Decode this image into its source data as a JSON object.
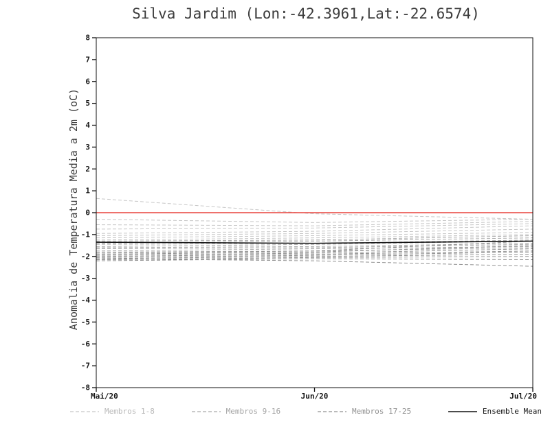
{
  "chart_data": {
    "type": "line",
    "title": "Silva Jardim (Lon:-42.3961,Lat:-22.6574)",
    "ylabel": "Anomalia de Temperatura Media a 2m (oC)",
    "xlabel": "",
    "ylim": [
      -8,
      8
    ],
    "y_ticks": [
      8,
      7,
      6,
      5,
      4,
      3,
      2,
      1,
      0,
      -1,
      -2,
      -3,
      -4,
      -5,
      -6,
      -7,
      -8
    ],
    "x": [
      "Mai/20",
      "Jun/20",
      "Jul/20"
    ],
    "grid": false,
    "legend_position": "bottom",
    "zero_line": {
      "value": 0,
      "color": "#e8423c"
    },
    "ensemble_mean": {
      "name": "Ensemble Mean",
      "color": "#111111",
      "dashed": false,
      "values": [
        -1.35,
        -1.4,
        -1.3
      ]
    },
    "series": [
      {
        "name": "Membro 1",
        "group": "1-8",
        "color": "#c6c6c6",
        "dashed": true,
        "values": [
          0.65,
          -0.05,
          -0.3
        ]
      },
      {
        "name": "Membro 2",
        "group": "1-8",
        "color": "#c6c6c6",
        "dashed": true,
        "values": [
          -0.3,
          -0.45,
          -0.3
        ]
      },
      {
        "name": "Membro 3",
        "group": "1-8",
        "color": "#c6c6c6",
        "dashed": true,
        "values": [
          -0.55,
          -0.6,
          -0.4
        ]
      },
      {
        "name": "Membro 4",
        "group": "1-8",
        "color": "#c6c6c6",
        "dashed": true,
        "values": [
          -0.75,
          -0.7,
          -0.5
        ]
      },
      {
        "name": "Membro 5",
        "group": "1-8",
        "color": "#c6c6c6",
        "dashed": true,
        "values": [
          -0.95,
          -0.85,
          -0.6
        ]
      },
      {
        "name": "Membro 6",
        "group": "1-8",
        "color": "#c6c6c6",
        "dashed": true,
        "values": [
          -1.05,
          -0.95,
          -0.75
        ]
      },
      {
        "name": "Membro 7",
        "group": "1-8",
        "color": "#c6c6c6",
        "dashed": true,
        "values": [
          -1.15,
          -1.05,
          -0.9
        ]
      },
      {
        "name": "Membro 8",
        "group": "1-8",
        "color": "#c6c6c6",
        "dashed": true,
        "values": [
          -1.25,
          -1.15,
          -1.0
        ]
      },
      {
        "name": "Membro 9",
        "group": "9-16",
        "color": "#ababab",
        "dashed": true,
        "values": [
          -1.3,
          -1.25,
          -1.05
        ]
      },
      {
        "name": "Membro 10",
        "group": "9-16",
        "color": "#ababab",
        "dashed": true,
        "values": [
          -1.4,
          -1.3,
          -1.15
        ]
      },
      {
        "name": "Membro 11",
        "group": "9-16",
        "color": "#ababab",
        "dashed": true,
        "values": [
          -1.45,
          -1.4,
          -1.25
        ]
      },
      {
        "name": "Membro 12",
        "group": "9-16",
        "color": "#ababab",
        "dashed": true,
        "values": [
          -1.55,
          -1.45,
          -1.3
        ]
      },
      {
        "name": "Membro 13",
        "group": "9-16",
        "color": "#ababab",
        "dashed": true,
        "values": [
          -1.6,
          -1.55,
          -1.4
        ]
      },
      {
        "name": "Membro 14",
        "group": "9-16",
        "color": "#ababab",
        "dashed": true,
        "values": [
          -1.65,
          -1.6,
          -1.45
        ]
      },
      {
        "name": "Membro 15",
        "group": "9-16",
        "color": "#ababab",
        "dashed": true,
        "values": [
          -1.75,
          -1.65,
          -1.55
        ]
      },
      {
        "name": "Membro 16",
        "group": "9-16",
        "color": "#ababab",
        "dashed": true,
        "values": [
          -1.8,
          -1.75,
          -1.6
        ]
      },
      {
        "name": "Membro 17",
        "group": "17-25",
        "color": "#909090",
        "dashed": true,
        "values": [
          -1.85,
          -1.75,
          -1.3
        ]
      },
      {
        "name": "Membro 18",
        "group": "17-25",
        "color": "#909090",
        "dashed": true,
        "values": [
          -1.9,
          -1.8,
          -1.5
        ]
      },
      {
        "name": "Membro 19",
        "group": "17-25",
        "color": "#909090",
        "dashed": true,
        "values": [
          -1.95,
          -1.85,
          -1.65
        ]
      },
      {
        "name": "Membro 20",
        "group": "17-25",
        "color": "#909090",
        "dashed": true,
        "values": [
          -2.0,
          -1.9,
          -1.75
        ]
      },
      {
        "name": "Membro 21",
        "group": "17-25",
        "color": "#909090",
        "dashed": true,
        "values": [
          -2.05,
          -1.95,
          -1.8
        ]
      },
      {
        "name": "Membro 22",
        "group": "17-25",
        "color": "#909090",
        "dashed": true,
        "values": [
          -2.1,
          -2.0,
          -1.9
        ]
      },
      {
        "name": "Membro 23",
        "group": "17-25",
        "color": "#909090",
        "dashed": true,
        "values": [
          -2.15,
          -2.05,
          -2.0
        ]
      },
      {
        "name": "Membro 24",
        "group": "17-25",
        "color": "#909090",
        "dashed": true,
        "values": [
          -2.2,
          -2.1,
          -2.15
        ]
      },
      {
        "name": "Membro 25",
        "group": "17-25",
        "color": "#909090",
        "dashed": true,
        "values": [
          -2.1,
          -2.2,
          -2.45
        ]
      }
    ],
    "legend": [
      {
        "label": "Membros 1-8",
        "color": "#c6c6c6",
        "dashed": true
      },
      {
        "label": "Membros 9-16",
        "color": "#ababab",
        "dashed": true
      },
      {
        "label": "Membros 17-25",
        "color": "#909090",
        "dashed": true
      },
      {
        "label": "Ensemble Mean",
        "color": "#111111",
        "dashed": false
      }
    ]
  }
}
